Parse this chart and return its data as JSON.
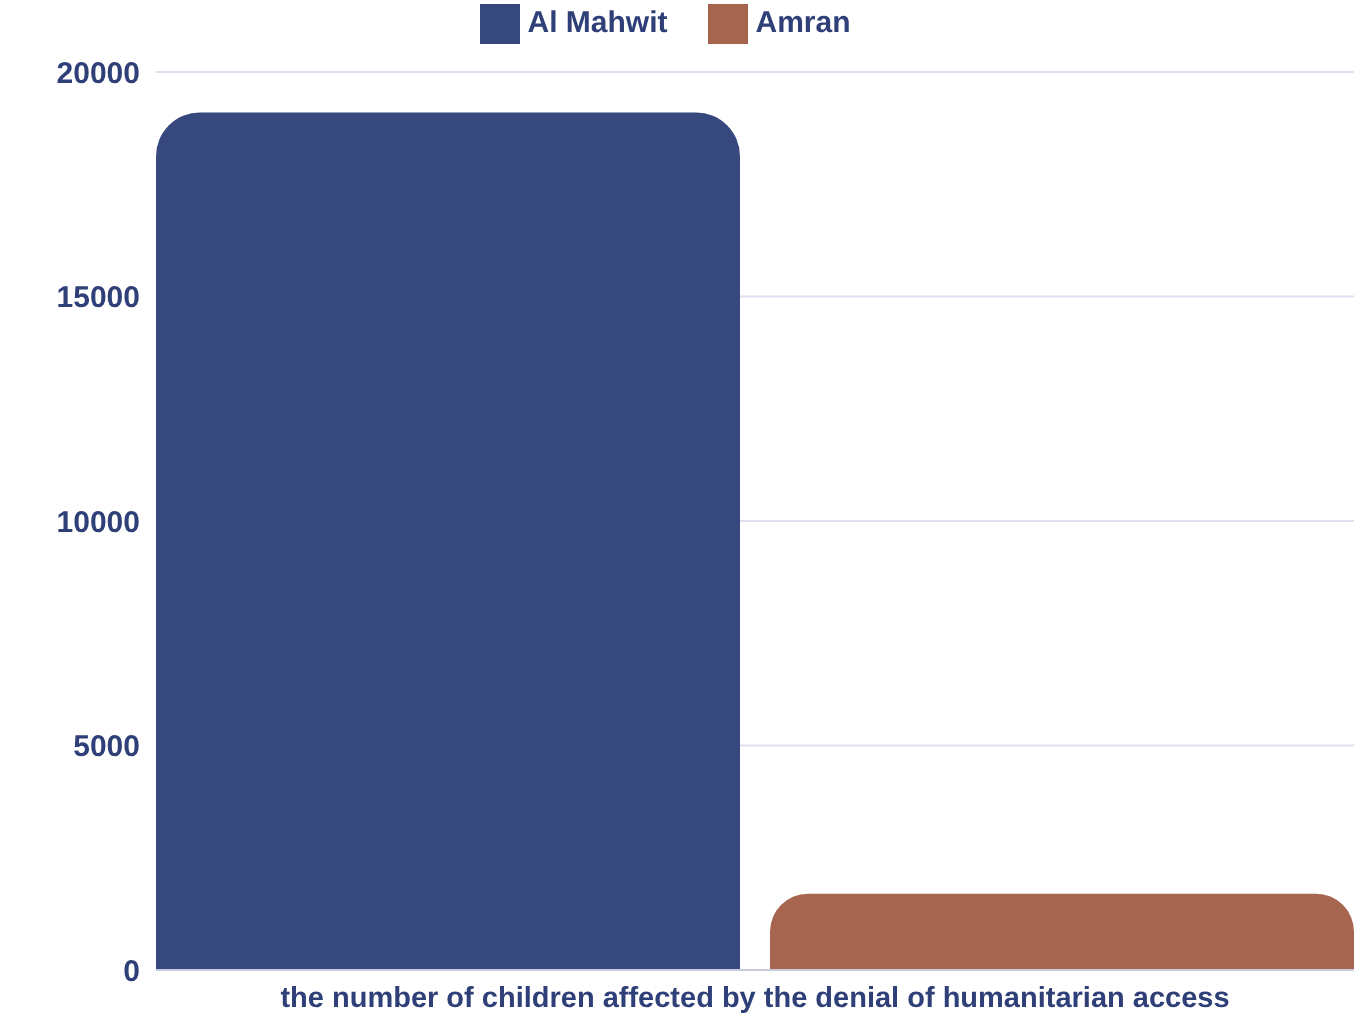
{
  "chart_data": {
    "type": "bar",
    "categories": [
      "the number of children affected by the denial of humanitarian access"
    ],
    "series": [
      {
        "name": "Al Mahwit",
        "color": "#36487e",
        "values": [
          19100
        ]
      },
      {
        "name": "Amran",
        "color": "#a5654e",
        "values": [
          1700
        ]
      }
    ],
    "ylim": [
      0,
      20000
    ],
    "yticks": [
      0,
      5000,
      10000,
      15000,
      20000
    ],
    "grid": "y",
    "legend": "top"
  }
}
